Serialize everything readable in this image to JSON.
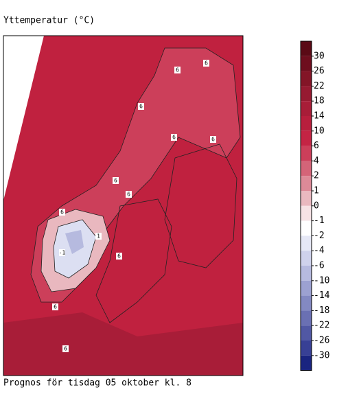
{
  "header": {
    "title": "Yttemperatur (°C)"
  },
  "footer": {
    "caption": "Prognos för tisdag 05 oktober kl. 8"
  },
  "map": {
    "contour_labels": [
      "6",
      "6",
      "6",
      "6",
      "6",
      "6",
      "6",
      "6",
      "6",
      "6",
      "-1",
      "1",
      "6"
    ]
  },
  "colorbar": {
    "ticks": [
      30,
      26,
      22,
      18,
      14,
      10,
      6,
      4,
      2,
      1,
      0,
      -1,
      -2,
      -4,
      -6,
      -10,
      -14,
      -18,
      -22,
      -26,
      -30
    ],
    "colors": [
      "#5a0a16",
      "#6e0e1e",
      "#831527",
      "#961a31",
      "#a81d38",
      "#b81f3d",
      "#c42444",
      "#cc3f5a",
      "#d46478",
      "#dd8a98",
      "#e9b8bf",
      "#f6e2e5",
      "#ffffff",
      "#e6e8f6",
      "#cfd2ec",
      "#b6badf",
      "#9ca1d1",
      "#8389c2",
      "#6a70b3",
      "#5158a4",
      "#384095",
      "#1a2480"
    ]
  }
}
